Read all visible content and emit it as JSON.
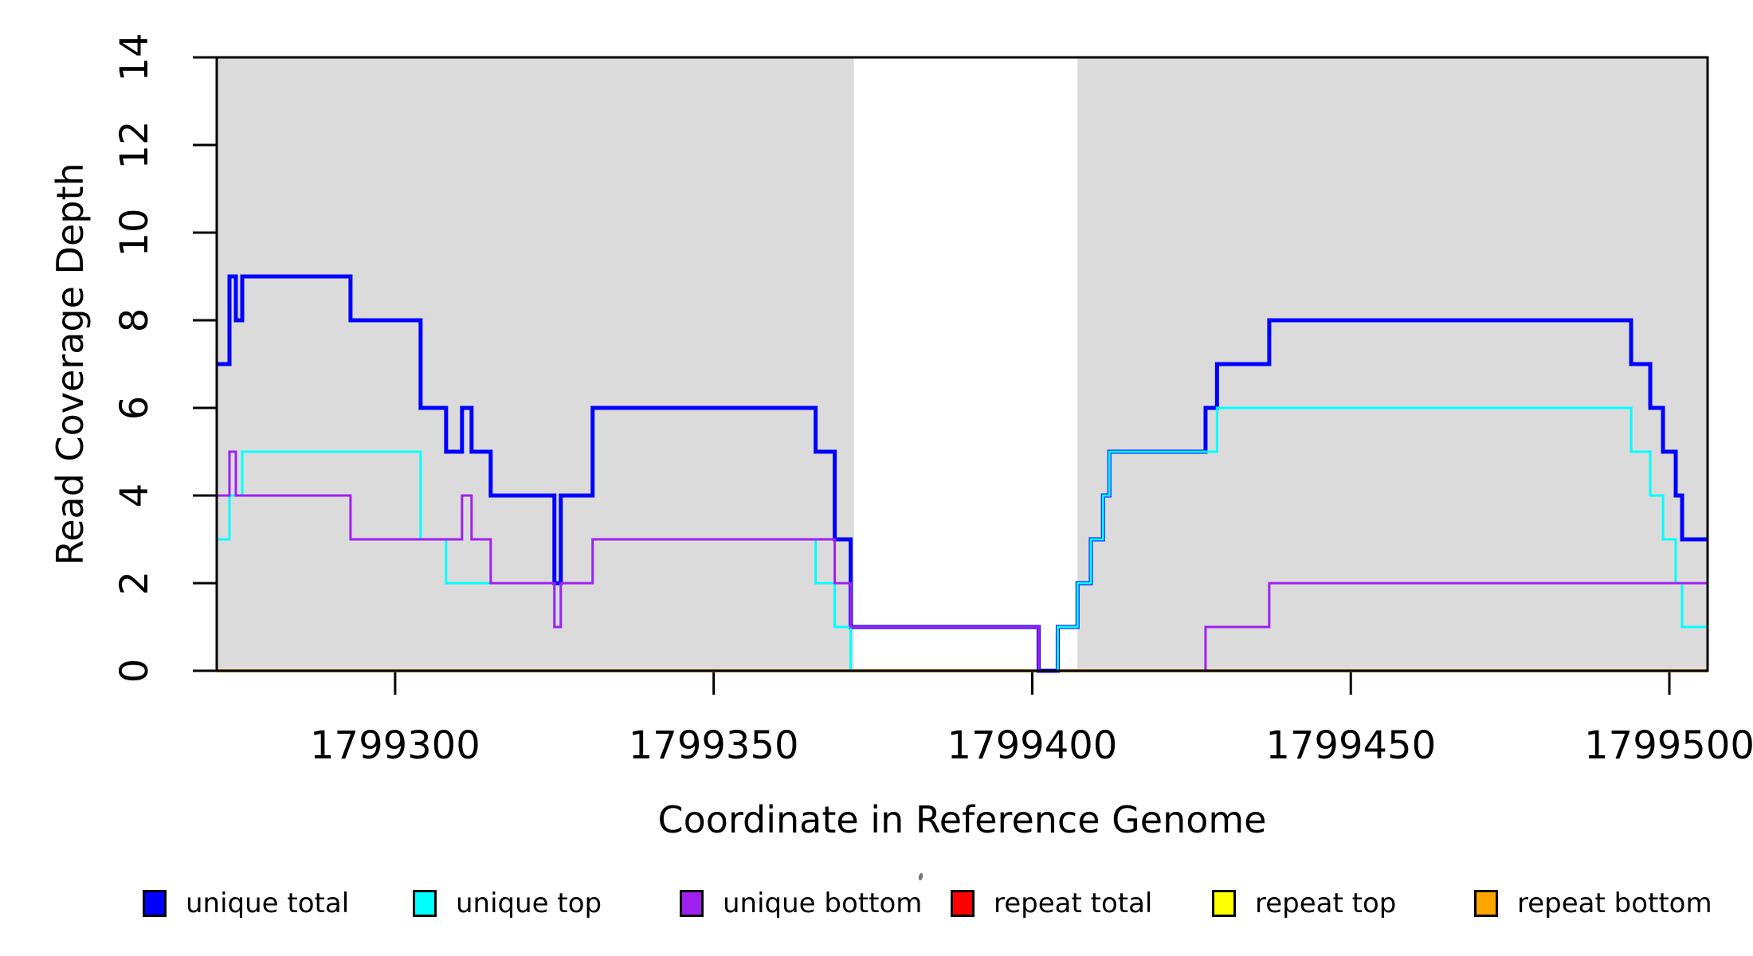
{
  "figure": {
    "xlabel": "Coordinate in Reference Genome",
    "ylabel": "Read Coverage Depth",
    "background": "#ffffff",
    "frame_color": "#000000"
  },
  "chart_data": {
    "type": "line",
    "subtype": "step-post",
    "title": "",
    "xlabel": "Coordinate in Reference Genome",
    "ylabel": "Read Coverage Depth",
    "xlim": [
      1799272,
      1799506
    ],
    "ylim": [
      0,
      14
    ],
    "x_ticks": [
      1799300,
      1799350,
      1799400,
      1799450,
      1799500
    ],
    "y_ticks": [
      0,
      2,
      4,
      6,
      8,
      10,
      12,
      14
    ],
    "grid": false,
    "legend_position": "bottom",
    "shaded_regions": [
      {
        "name": "annotation-band-left",
        "x0": 1799272,
        "x1": 1799372,
        "color": "#DBDBDB"
      },
      {
        "name": "annotation-band-right",
        "x0": 1799407.1,
        "x1": 1799506,
        "color": "#DBDBDB"
      }
    ],
    "series": [
      {
        "name": "repeat total",
        "color": "#FF0000",
        "width": 3,
        "steps": [
          [
            1799272,
            0
          ]
        ]
      },
      {
        "name": "repeat top",
        "color": "#FFFF00",
        "width": 3,
        "steps": [
          [
            1799272,
            0
          ]
        ]
      },
      {
        "name": "repeat bottom",
        "color": "#FFA500",
        "width": 4,
        "steps": [
          [
            1799272,
            0
          ]
        ]
      },
      {
        "name": "unique total",
        "color": "#0000FF",
        "width": 5,
        "steps": [
          [
            1799272,
            7
          ],
          [
            1799274,
            9
          ],
          [
            1799275,
            8
          ],
          [
            1799276,
            9
          ],
          [
            1799293,
            8
          ],
          [
            1799304,
            6
          ],
          [
            1799308,
            5
          ],
          [
            1799310.5,
            6
          ],
          [
            1799312,
            5
          ],
          [
            1799315,
            4
          ],
          [
            1799325,
            2
          ],
          [
            1799326,
            4
          ],
          [
            1799331,
            6
          ],
          [
            1799366,
            5
          ],
          [
            1799369,
            3
          ],
          [
            1799371.5,
            1
          ],
          [
            1799401,
            0
          ],
          [
            1799404,
            1
          ],
          [
            1799407.1,
            2
          ],
          [
            1799409.2,
            3
          ],
          [
            1799411.1,
            4
          ],
          [
            1799412.1,
            5
          ],
          [
            1799427.2,
            6
          ],
          [
            1799429,
            7
          ],
          [
            1799437.2,
            8
          ],
          [
            1799494,
            7
          ],
          [
            1799497,
            6
          ],
          [
            1799499,
            5
          ],
          [
            1799501,
            4
          ],
          [
            1799502,
            3
          ]
        ]
      },
      {
        "name": "unique top",
        "color": "#00FFFF",
        "width": 3,
        "steps": [
          [
            1799272,
            3
          ],
          [
            1799274,
            4
          ],
          [
            1799276,
            5
          ],
          [
            1799304,
            3
          ],
          [
            1799308,
            2
          ],
          [
            1799325,
            1
          ],
          [
            1799326,
            2
          ],
          [
            1799331,
            3
          ],
          [
            1799366,
            2
          ],
          [
            1799369,
            1
          ],
          [
            1799371.5,
            0
          ],
          [
            1799404,
            1
          ],
          [
            1799407.1,
            2
          ],
          [
            1799409.2,
            3
          ],
          [
            1799411.1,
            4
          ],
          [
            1799412.1,
            5
          ],
          [
            1799429,
            6
          ],
          [
            1799494,
            5
          ],
          [
            1799497,
            4
          ],
          [
            1799499,
            3
          ],
          [
            1799501,
            2
          ],
          [
            1799502,
            1
          ]
        ]
      },
      {
        "name": "unique bottom",
        "color": "#A020F0",
        "width": 3,
        "steps": [
          [
            1799272,
            4
          ],
          [
            1799274,
            5
          ],
          [
            1799275,
            4
          ],
          [
            1799293,
            3
          ],
          [
            1799310.5,
            4
          ],
          [
            1799312,
            3
          ],
          [
            1799315,
            2
          ],
          [
            1799325,
            1
          ],
          [
            1799326,
            2
          ],
          [
            1799331,
            3
          ],
          [
            1799369,
            2
          ],
          [
            1799371.5,
            1
          ],
          [
            1799401,
            0
          ],
          [
            1799427.2,
            1
          ],
          [
            1799437.2,
            2
          ]
        ]
      }
    ]
  },
  "legend": {
    "items": [
      {
        "label": "unique total",
        "color": "#0000FF"
      },
      {
        "label": "unique top",
        "color": "#00FFFF"
      },
      {
        "label": "unique bottom",
        "color": "#A020F0"
      },
      {
        "label": "repeat total",
        "color": "#FF0000"
      },
      {
        "label": "repeat top",
        "color": "#FFFF00"
      },
      {
        "label": "repeat bottom",
        "color": "#FFA500"
      }
    ]
  }
}
